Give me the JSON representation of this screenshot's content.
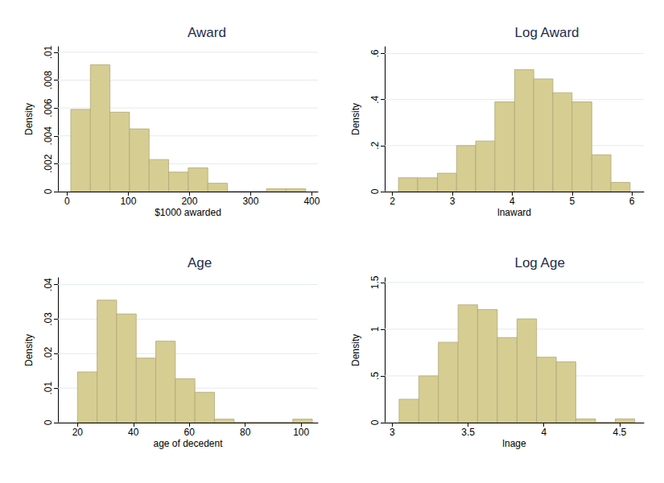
{
  "chart_data": [
    {
      "type": "histogram",
      "title": "Award",
      "x_label": "$1000 awarded",
      "y_label": "Density",
      "bins": [
        6,
        38,
        70,
        102,
        134,
        166,
        198,
        230,
        262,
        294,
        326,
        358,
        390
      ],
      "values": [
        0.0059,
        0.0091,
        0.0057,
        0.0045,
        0.0023,
        0.0014,
        0.0017,
        0.0006,
        0,
        0,
        0.0002,
        0.0002
      ],
      "color": "#d6cd92",
      "xlim": [
        -15,
        410
      ],
      "xticks": [
        0,
        100,
        200,
        300,
        400
      ],
      "ylim": [
        0,
        0.0104
      ],
      "yticks": [
        0,
        {
          "value": 0.002,
          "label": ".002"
        },
        {
          "value": 0.004,
          "label": ".004"
        },
        {
          "value": 0.006,
          "label": ".006"
        },
        {
          "value": 0.008,
          "label": ".008"
        },
        {
          "value": 0.01,
          "label": ".01"
        }
      ],
      "grid": true
    },
    {
      "type": "histogram",
      "title": "Log Award",
      "x_label": "lnaward",
      "y_label": "Density",
      "bins": [
        2.1,
        2.42,
        2.75,
        3.07,
        3.39,
        3.71,
        4.04,
        4.36,
        4.68,
        5.0,
        5.33,
        5.65,
        5.97
      ],
      "values": [
        0.06,
        0.06,
        0.08,
        0.2,
        0.22,
        0.39,
        0.53,
        0.49,
        0.43,
        0.39,
        0.16,
        0.04
      ],
      "color": "#d6cd92",
      "xlim": [
        1.87,
        6.2
      ],
      "xticks": [
        2,
        3,
        4,
        5,
        6
      ],
      "ylim": [
        0,
        0.63
      ],
      "yticks": [
        0,
        {
          "value": 0.2,
          "label": ".2"
        },
        {
          "value": 0.4,
          "label": ".4"
        },
        {
          "value": 0.6,
          "label": ".6"
        }
      ],
      "grid": true
    },
    {
      "type": "histogram",
      "title": "Age",
      "x_label": "age of decedent",
      "y_label": "Density",
      "bins": [
        20,
        27,
        34,
        41,
        48,
        55,
        62,
        69,
        76,
        83,
        90,
        97,
        104
      ],
      "values": [
        0.0147,
        0.0355,
        0.0315,
        0.0187,
        0.0236,
        0.0127,
        0.0088,
        0.001,
        0,
        0,
        0,
        0.001
      ],
      "color": "#d6cd92",
      "xlim": [
        13,
        106
      ],
      "xticks": [
        20,
        40,
        60,
        80,
        100
      ],
      "ylim": [
        0,
        0.042
      ],
      "yticks": [
        0,
        {
          "value": 0.01,
          "label": ".01"
        },
        {
          "value": 0.02,
          "label": ".02"
        },
        {
          "value": 0.03,
          "label": ".03"
        },
        {
          "value": 0.04,
          "label": ".04"
        }
      ],
      "grid": true
    },
    {
      "type": "histogram",
      "title": "Log Age",
      "x_label": "lnage",
      "y_label": "Density",
      "bins": [
        3.045,
        3.175,
        3.304,
        3.434,
        3.563,
        3.693,
        3.823,
        3.952,
        4.082,
        4.211,
        4.341,
        4.471,
        4.6
      ],
      "values": [
        0.25,
        0.5,
        0.86,
        1.26,
        1.21,
        0.91,
        1.11,
        0.7,
        0.65,
        0.04,
        0,
        0.04
      ],
      "color": "#d6cd92",
      "xlim": [
        2.95,
        4.66
      ],
      "xticks": [
        3,
        3.5,
        4,
        4.5
      ],
      "ylim": [
        0,
        1.55
      ],
      "yticks": [
        0,
        {
          "value": 0.5,
          "label": ".5"
        },
        1,
        1.5
      ],
      "grid": true
    }
  ]
}
